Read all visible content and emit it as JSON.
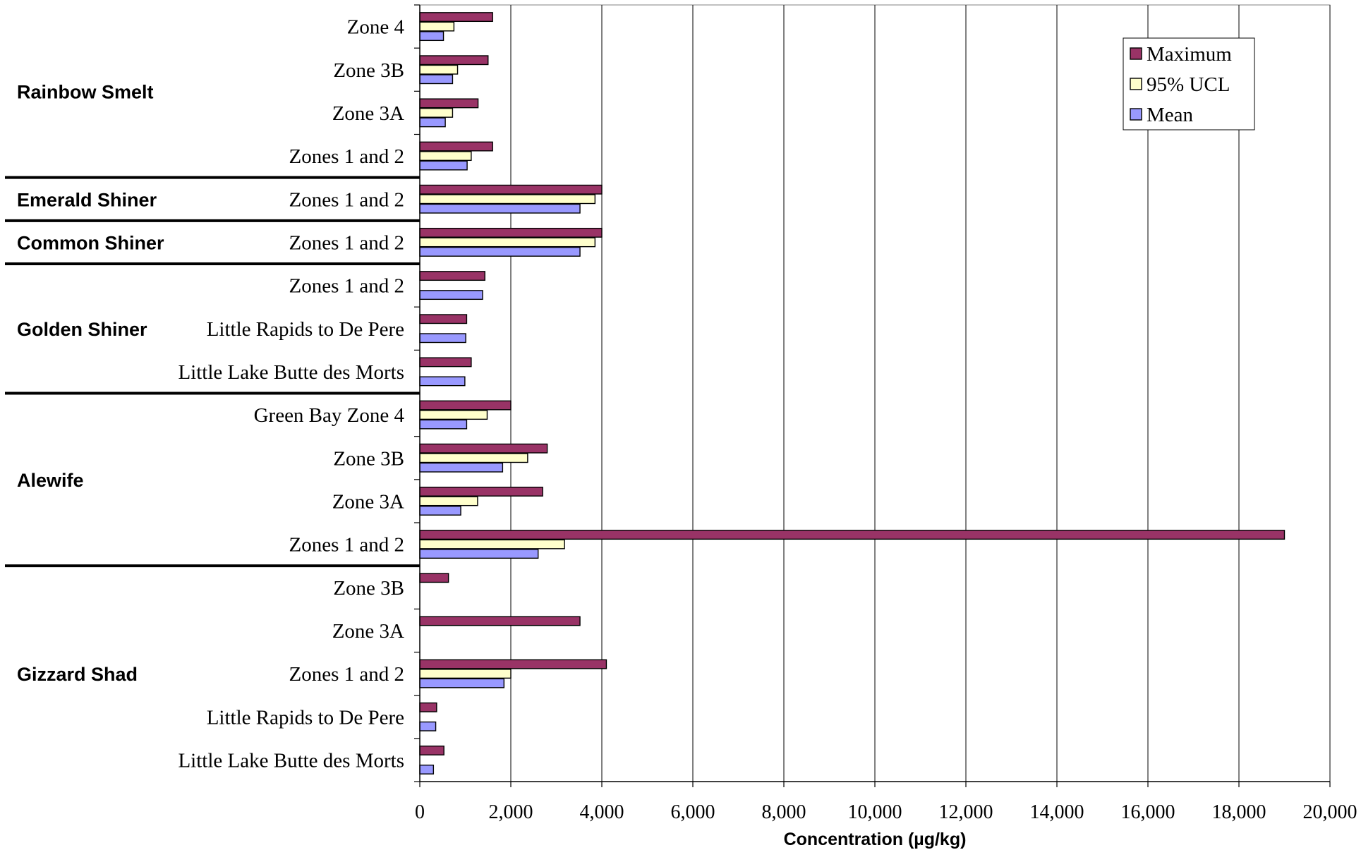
{
  "chart_data": {
    "type": "bar",
    "orientation": "horizontal",
    "xlabel": "Concentration (µg/kg)",
    "xlim": [
      0,
      20000
    ],
    "xticks": [
      0,
      2000,
      4000,
      6000,
      8000,
      10000,
      12000,
      14000,
      16000,
      18000,
      20000
    ],
    "xtick_labels": [
      "0",
      "2,000",
      "4,000",
      "6,000",
      "8,000",
      "10,000",
      "12,000",
      "14,000",
      "16,000",
      "18,000",
      "20,000"
    ],
    "grid": "vertical",
    "legend_position": "top-right",
    "series": [
      {
        "name": "Maximum",
        "color": "#993366"
      },
      {
        "name": "95% UCL",
        "color": "#FFFFCC"
      },
      {
        "name": "Mean",
        "color": "#9999FF"
      }
    ],
    "groups": [
      {
        "species": "Rainbow Smelt",
        "categories": [
          {
            "label": "Zone 4",
            "values": [
              1600,
              750,
              520
            ]
          },
          {
            "label": "Zone 3B",
            "values": [
              1500,
              830,
              720
            ]
          },
          {
            "label": "Zone 3A",
            "values": [
              1280,
              720,
              560
            ]
          },
          {
            "label": "Zones 1 and 2",
            "values": [
              1600,
              1130,
              1040
            ]
          }
        ]
      },
      {
        "species": "Emerald Shiner",
        "categories": [
          {
            "label": "Zones 1 and 2",
            "values": [
              4000,
              3850,
              3520
            ]
          }
        ]
      },
      {
        "species": "Common Shiner",
        "categories": [
          {
            "label": "Zones 1 and 2",
            "values": [
              4000,
              3850,
              3520
            ]
          }
        ]
      },
      {
        "species": "Golden Shiner",
        "categories": [
          {
            "label": "Zones 1 and 2",
            "values": [
              1430,
              null,
              1380
            ]
          },
          {
            "label": "Little Rapids to De Pere",
            "values": [
              1030,
              null,
              1010
            ]
          },
          {
            "label": "Little Lake Butte des Morts",
            "values": [
              1130,
              null,
              990
            ]
          }
        ]
      },
      {
        "species": "Alewife",
        "categories": [
          {
            "label": "Green Bay Zone 4",
            "values": [
              2000,
              1480,
              1030
            ]
          },
          {
            "label": "Zone 3B",
            "values": [
              2800,
              2370,
              1820
            ]
          },
          {
            "label": "Zone 3A",
            "values": [
              2700,
              1270,
              900
            ]
          },
          {
            "label": "Zones 1 and 2",
            "values": [
              19000,
              3180,
              2600
            ]
          }
        ]
      },
      {
        "species": "Gizzard Shad",
        "categories": [
          {
            "label": "Zone 3B",
            "values": [
              630,
              null,
              null
            ]
          },
          {
            "label": "Zone 3A",
            "values": [
              3520,
              null,
              null
            ]
          },
          {
            "label": "Zones 1 and 2",
            "values": [
              4100,
              2000,
              1850
            ]
          },
          {
            "label": "Little Rapids to De Pere",
            "values": [
              370,
              null,
              350
            ]
          },
          {
            "label": "Little Lake Butte des Morts",
            "values": [
              530,
              null,
              300
            ]
          }
        ]
      }
    ]
  }
}
